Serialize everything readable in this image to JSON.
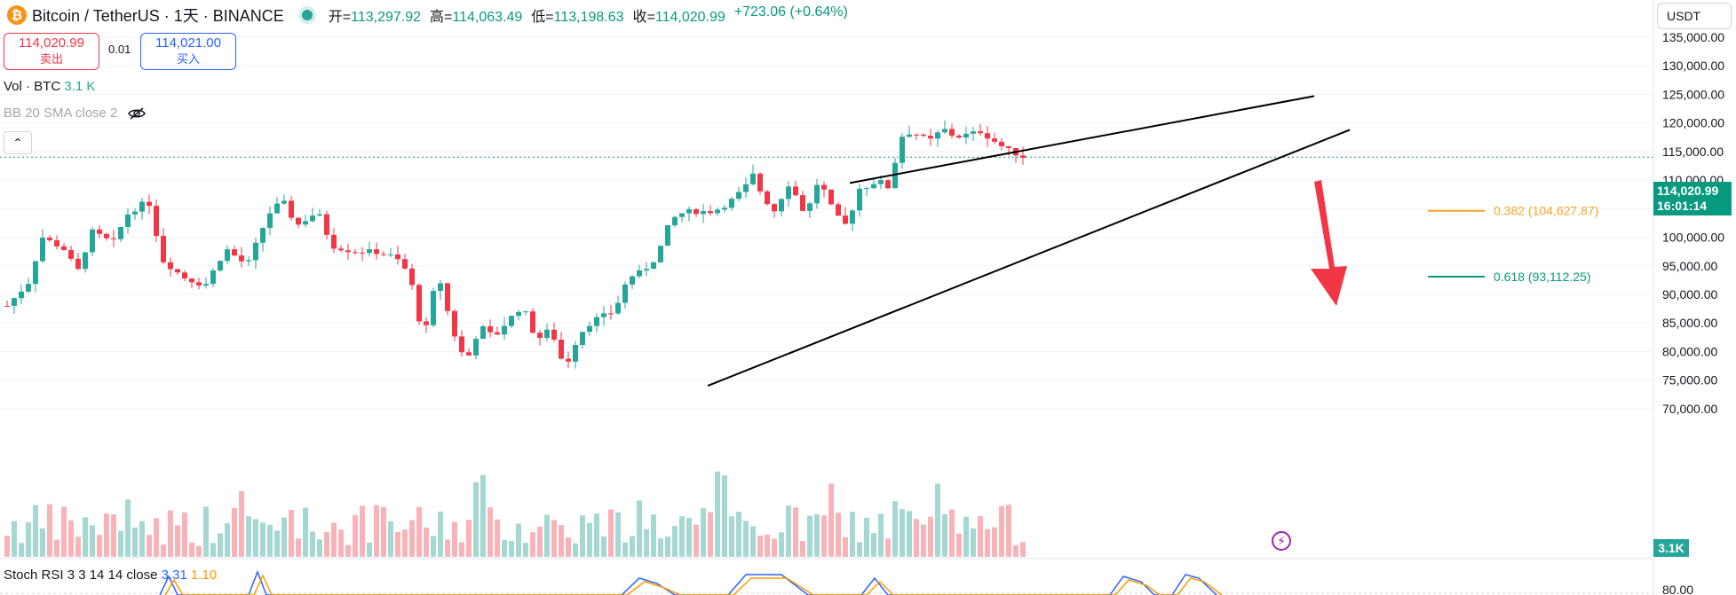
{
  "header": {
    "coin_icon_letter": "₿",
    "symbol": "Bitcoin / TetherUS · 1天 · BINANCE",
    "open_label": "开=",
    "open": "113,297.92",
    "high_label": "高=",
    "high": "114,063.49",
    "low_label": "低=",
    "low": "113,198.63",
    "close_label": "收=",
    "close": "114,020.99",
    "change": "+723.06 (+0.64%)"
  },
  "trade": {
    "sell_price": "114,020.99",
    "sell_label": "卖出",
    "spread": "0.01",
    "buy_price": "114,021.00",
    "buy_label": "买入"
  },
  "indicators": {
    "vol_label": "Vol · BTC",
    "vol_value": "3.1 K",
    "bb_label": "BB 20 SMA close 2",
    "stoch_label": "Stoch RSI 3 3 14 14 close",
    "stoch_k": "3.31",
    "stoch_d": "1.10"
  },
  "axis": {
    "currency": "USDT",
    "price_tag": "114,020.99",
    "countdown": "16:01:14",
    "vol_tag": "3.1K",
    "stoch_tick": "80.00"
  },
  "colors": {
    "up": "#26a69a",
    "down": "#f23645",
    "fib382": "#f5a623",
    "fib618": "#089981",
    "arrow": "#f23645"
  },
  "chart_data": {
    "type": "candlestick",
    "title": "Bitcoin / TetherUS · 1天 · BINANCE",
    "y_ticks": [
      135000,
      130000,
      125000,
      120000,
      115000,
      110000,
      105000,
      100000,
      95000,
      90000,
      85000,
      80000,
      75000,
      70000
    ],
    "y_tick_labels": [
      "135,000.00",
      "130,000.00",
      "125,000.00",
      "120,000.00",
      "115,000.00",
      "110,000.00",
      "105,000.00",
      "100,000.00",
      "95,000.00",
      "90,000.00",
      "85,000.00",
      "80,000.00",
      "75,000.00",
      "70,000.00"
    ],
    "ylim": [
      67500,
      136000
    ],
    "last_price": 114020.99,
    "fib_levels": [
      {
        "label": "0.382 (104,627.87)",
        "value": 104627.87
      },
      {
        "label": "0.618 (93,112.25)",
        "value": 93112.25
      }
    ],
    "trendlines": [
      {
        "name": "upper",
        "from_value": 109500,
        "to_value": 124700
      },
      {
        "name": "lower",
        "from_value": 74000,
        "to_value": 118800
      }
    ],
    "price_path": [
      [
        0,
        88000
      ],
      [
        0.03,
        92000
      ],
      [
        0.05,
        100000
      ],
      [
        0.08,
        98000
      ],
      [
        0.1,
        94000
      ],
      [
        0.12,
        101000
      ],
      [
        0.15,
        99000
      ],
      [
        0.17,
        104000
      ],
      [
        0.2,
        106500
      ],
      [
        0.22,
        96000
      ],
      [
        0.25,
        93000
      ],
      [
        0.28,
        91500
      ],
      [
        0.31,
        98000
      ],
      [
        0.34,
        95000
      ],
      [
        0.37,
        104000
      ],
      [
        0.39,
        106500
      ],
      [
        0.41,
        102000
      ],
      [
        0.44,
        104500
      ],
      [
        0.46,
        98500
      ],
      [
        0.49,
        97500
      ],
      [
        0.52,
        97500
      ],
      [
        0.55,
        96500
      ],
      [
        0.57,
        93500
      ],
      [
        0.59,
        82000
      ],
      [
        0.61,
        94000
      ],
      [
        0.63,
        84000
      ],
      [
        0.65,
        78000
      ],
      [
        0.67,
        84500
      ],
      [
        0.69,
        82500
      ],
      [
        0.71,
        85500
      ],
      [
        0.73,
        88000
      ],
      [
        0.75,
        82000
      ],
      [
        0.77,
        84000
      ],
      [
        0.79,
        77000
      ],
      [
        0.81,
        83000
      ],
      [
        0.83,
        85500
      ],
      [
        0.86,
        87000
      ],
      [
        0.88,
        93000
      ],
      [
        0.9,
        94000
      ],
      [
        0.92,
        96500
      ],
      [
        0.94,
        103000
      ],
      [
        0.96,
        104500
      ]
    ],
    "price_path_2": [
      [
        0,
        104500
      ],
      [
        0.05,
        106000
      ],
      [
        0.1,
        108500
      ],
      [
        0.13,
        111000
      ],
      [
        0.16,
        107000
      ],
      [
        0.2,
        104500
      ],
      [
        0.24,
        109500
      ],
      [
        0.27,
        107000
      ],
      [
        0.3,
        103500
      ],
      [
        0.33,
        109500
      ],
      [
        0.36,
        108000
      ],
      [
        0.39,
        104000
      ],
      [
        0.43,
        102000
      ],
      [
        0.47,
        108500
      ],
      [
        0.5,
        109000
      ],
      [
        0.53,
        110000
      ],
      [
        0.57,
        108500
      ],
      [
        0.6,
        117500
      ],
      [
        0.64,
        118500
      ],
      [
        0.67,
        117500
      ],
      [
        0.7,
        117000
      ],
      [
        0.74,
        119000
      ],
      [
        0.78,
        117500
      ],
      [
        0.82,
        118000
      ],
      [
        0.86,
        118500
      ],
      [
        0.9,
        117000
      ],
      [
        0.94,
        115500
      ],
      [
        1,
        114021
      ]
    ]
  }
}
